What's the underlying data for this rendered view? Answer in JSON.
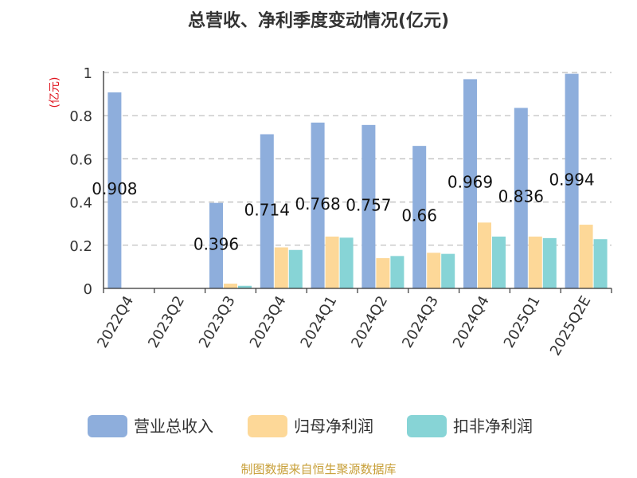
{
  "chart_data": {
    "type": "bar",
    "title": "总营收、净利季度变动情况(亿元)",
    "ylabel": "(亿元)",
    "ylim": [
      0,
      1
    ],
    "yticks": [
      0,
      0.2,
      0.4,
      0.6,
      0.8,
      1
    ],
    "ytick_labels": [
      "0",
      "0.2",
      "0.4",
      "0.6",
      "0.8",
      "1"
    ],
    "grid": true,
    "legend_position": "bottom",
    "categories": [
      "2022Q4",
      "2023Q2",
      "2023Q3",
      "2023Q4",
      "2024Q1",
      "2024Q2",
      "2024Q3",
      "2024Q4",
      "2025Q1",
      "2025Q2E"
    ],
    "series": [
      {
        "name": "营业总收入",
        "color": "#8eaedc",
        "values": [
          0.908,
          null,
          0.396,
          0.714,
          0.768,
          0.757,
          0.66,
          0.969,
          0.836,
          0.994
        ],
        "labels": [
          "0.908",
          "",
          "0.396",
          "0.714",
          "0.768",
          "0.757",
          "0.66",
          "0.969",
          "0.836",
          "0.994"
        ]
      },
      {
        "name": "归母净利润",
        "color": "#fdd898",
        "values": [
          null,
          null,
          0.022,
          0.19,
          0.24,
          0.14,
          0.165,
          0.305,
          0.24,
          0.295
        ]
      },
      {
        "name": "扣非净利润",
        "color": "#87d4d6",
        "values": [
          null,
          null,
          0.012,
          0.178,
          0.235,
          0.15,
          0.16,
          0.24,
          0.233,
          0.228
        ]
      }
    ]
  },
  "source_note": "制图数据来自恒生聚源数据库"
}
